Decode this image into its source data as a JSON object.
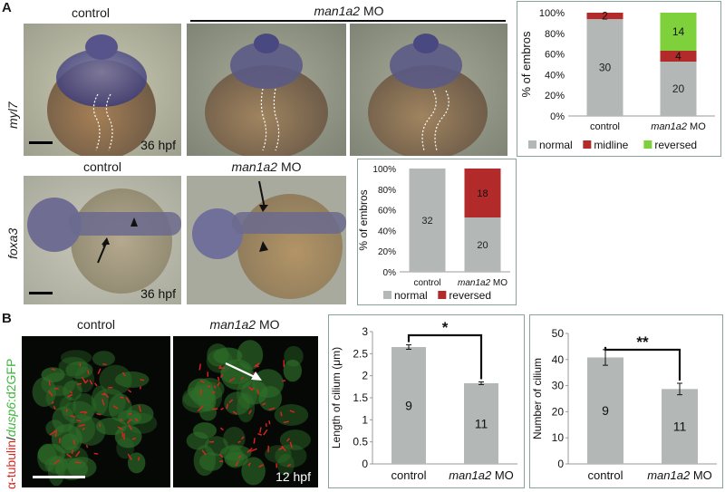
{
  "panels": {
    "A": {
      "letter": "A",
      "row1": {
        "gene_label": "myl7",
        "control_label": "control",
        "mo_label_italic": "man1a2",
        "mo_label_suffix": " MO",
        "stage": "36 hpf"
      },
      "row2": {
        "gene_label": "foxa3",
        "control_label": "control",
        "mo_label_italic": "man1a2",
        "mo_label_suffix": " MO",
        "stage": "36 hpf"
      }
    },
    "B": {
      "letter": "B",
      "control_label": "control",
      "mo_label_italic": "man1a2",
      "mo_label_suffix": " MO",
      "stage": "12 hpf",
      "side_label": {
        "part1": "α-tubulin",
        "sep": "/",
        "part2_italic": "dusp6",
        "part3": ":d2GFP"
      }
    }
  },
  "colors": {
    "normal": "#b3b7b5",
    "midline": "#b22a2a",
    "reversed_A1": "#7fd13b",
    "reversed_A2": "#b22a2a",
    "bar_B": "#b3b7b5",
    "frame": "#8aa39a",
    "cilia": "#e0241e",
    "gfp": "#2f6e2a"
  },
  "chart_data": [
    {
      "id": "A1",
      "type": "bar",
      "stacked": "percent",
      "ylabel": "% of embros",
      "ylim": [
        0,
        100
      ],
      "yticks": [
        "0%",
        "20%",
        "40%",
        "60%",
        "80%",
        "100%"
      ],
      "categories": [
        {
          "plain": "control",
          "italic": "",
          "suffix": ""
        },
        {
          "plain": "",
          "italic": "man1a2",
          "suffix": " MO"
        }
      ],
      "series": [
        {
          "name": "normal",
          "color": "#b3b7b5",
          "values": [
            30,
            20
          ]
        },
        {
          "name": "midline",
          "color": "#b22a2a",
          "values": [
            2,
            4
          ]
        },
        {
          "name": "reversed",
          "color": "#7fd13b",
          "values": [
            0,
            14
          ]
        }
      ],
      "data_labels": [
        [
          "30",
          "2",
          ""
        ],
        [
          "20",
          "4",
          "14"
        ]
      ],
      "legend": "bottom"
    },
    {
      "id": "A2",
      "type": "bar",
      "stacked": "percent",
      "ylabel": "% of embros",
      "ylim": [
        0,
        100
      ],
      "yticks": [
        "0%",
        "20%",
        "40%",
        "60%",
        "80%",
        "100%"
      ],
      "categories": [
        {
          "plain": "control",
          "italic": "",
          "suffix": ""
        },
        {
          "plain": "",
          "italic": "man1a2",
          "suffix": " MO"
        }
      ],
      "series": [
        {
          "name": "normal",
          "color": "#b3b7b5",
          "values": [
            32,
            20
          ]
        },
        {
          "name": "reversed",
          "color": "#b22a2a",
          "values": [
            0,
            18
          ]
        }
      ],
      "data_labels": [
        [
          "32",
          ""
        ],
        [
          "20",
          "18"
        ]
      ],
      "legend": "bottom"
    },
    {
      "id": "B1",
      "type": "bar",
      "ylabel": "Length of cilium (μm)",
      "ylim": [
        0,
        3
      ],
      "yticks": [
        "0",
        "0.5",
        "1",
        "1.5",
        "2",
        "2.5",
        "3"
      ],
      "categories": [
        {
          "plain": "control",
          "italic": "",
          "suffix": ""
        },
        {
          "plain": "",
          "italic": "man1a2",
          "suffix": " MO"
        }
      ],
      "values": [
        2.65,
        1.83
      ],
      "errors": [
        0.05,
        0.03
      ],
      "n_labels": [
        "9",
        "11"
      ],
      "significance": "*"
    },
    {
      "id": "B2",
      "type": "bar",
      "ylabel": "Number of cilium",
      "ylim": [
        0,
        50
      ],
      "yticks": [
        "0",
        "10",
        "20",
        "30",
        "40",
        "50"
      ],
      "categories": [
        {
          "plain": "control",
          "italic": "",
          "suffix": ""
        },
        {
          "plain": "",
          "italic": "man1a2",
          "suffix": " MO"
        }
      ],
      "values": [
        40.8,
        28.7
      ],
      "errors": [
        3.0,
        2.2
      ],
      "n_labels": [
        "9",
        "11"
      ],
      "significance": "**"
    }
  ]
}
